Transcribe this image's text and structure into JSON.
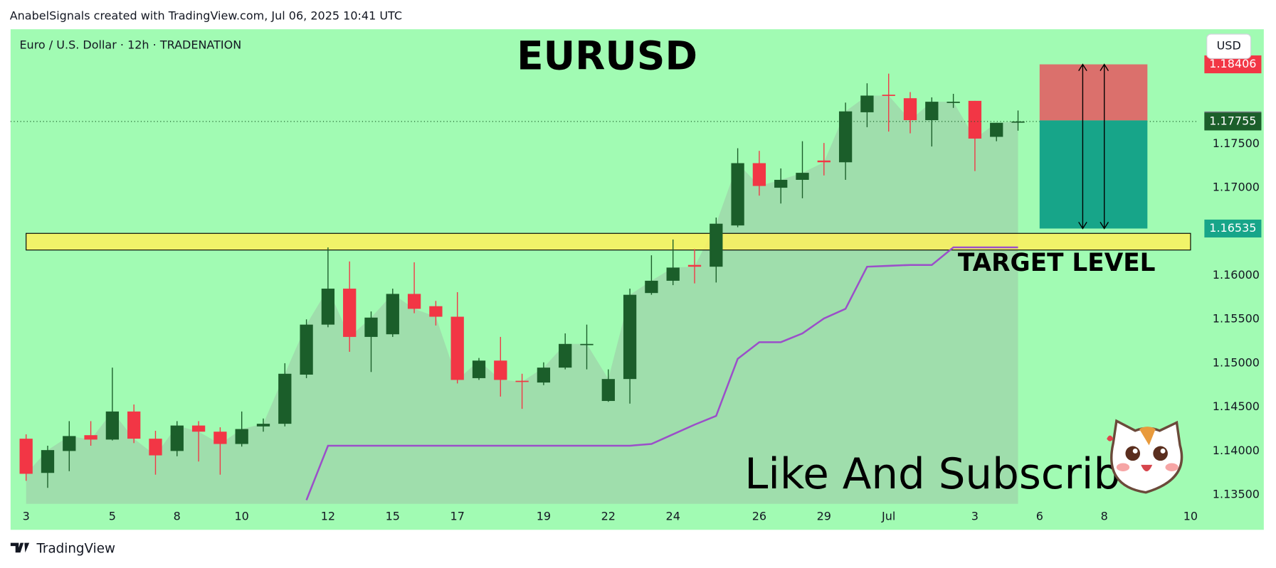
{
  "header": {
    "credit": "AnabelSignals created with TradingView.com, Jul 06, 2025 10:41 UTC"
  },
  "footer": {
    "brand": "TradingView"
  },
  "currency_button": "USD",
  "chart_data": {
    "type": "candlestick",
    "symbol": "Euro / U.S. Dollar · 12h · TRADENATION",
    "title": "EURUSD",
    "zone_label": "TARGET LEVEL",
    "annotation": "Like And Subscribe",
    "up_color": "#1b5e2a",
    "down_color": "#f23645",
    "background": "#a1fbb3",
    "area_color": "#9aa9a1",
    "open": [
      1.1414,
      1.1375,
      1.14,
      1.1418,
      1.1413,
      1.1445,
      1.1414,
      1.14,
      1.1429,
      1.1422,
      1.1408,
      1.1428,
      1.1431,
      1.1487,
      1.1544,
      1.1585,
      1.153,
      1.1533,
      1.1579,
      1.1565,
      1.1553,
      1.1483,
      1.1503,
      1.148,
      1.1478,
      1.1495,
      1.1521,
      1.1457,
      1.1482,
      1.158,
      1.1594,
      1.1612,
      1.161,
      1.1657,
      1.1728,
      1.17,
      1.1709,
      1.1731,
      1.1729,
      1.1786,
      1.1806,
      1.1802,
      1.1777,
      1.1797,
      1.1799,
      1.1758,
      1.1775
    ],
    "high": [
      1.1419,
      1.1406,
      1.1434,
      1.1434,
      1.1495,
      1.1453,
      1.1423,
      1.1434,
      1.1434,
      1.1427,
      1.1445,
      1.1437,
      1.15,
      1.155,
      1.1632,
      1.1616,
      1.1559,
      1.1585,
      1.1615,
      1.1571,
      1.1581,
      1.1506,
      1.153,
      1.1488,
      1.1501,
      1.1534,
      1.1544,
      1.1493,
      1.1585,
      1.1623,
      1.1641,
      1.163,
      1.1666,
      1.1745,
      1.1742,
      1.1722,
      1.1753,
      1.1751,
      1.1797,
      1.1819,
      1.183,
      1.1809,
      1.1803,
      1.1807,
      1.1799,
      1.1774,
      1.1788
    ],
    "low": [
      1.1366,
      1.1358,
      1.1377,
      1.1406,
      1.1412,
      1.1409,
      1.1373,
      1.1394,
      1.1388,
      1.1373,
      1.1405,
      1.1422,
      1.1428,
      1.1483,
      1.1541,
      1.1513,
      1.149,
      1.153,
      1.1557,
      1.1543,
      1.1477,
      1.1481,
      1.1462,
      1.1448,
      1.1475,
      1.1493,
      1.1493,
      1.1456,
      1.1454,
      1.1578,
      1.1589,
      1.1591,
      1.1592,
      1.1655,
      1.1691,
      1.1682,
      1.1688,
      1.1714,
      1.1709,
      1.1769,
      1.1764,
      1.1762,
      1.1747,
      1.1791,
      1.1719,
      1.1753,
      1.1765
    ],
    "close": [
      1.1374,
      1.1401,
      1.1417,
      1.1413,
      1.1445,
      1.1414,
      1.1395,
      1.1429,
      1.1422,
      1.1408,
      1.1425,
      1.1431,
      1.1488,
      1.1544,
      1.1585,
      1.153,
      1.1552,
      1.1579,
      1.1562,
      1.1553,
      1.1481,
      1.1503,
      1.1481,
      1.1479,
      1.1495,
      1.1522,
      1.1522,
      1.1482,
      1.1578,
      1.1594,
      1.1609,
      1.161,
      1.1659,
      1.1728,
      1.1702,
      1.1709,
      1.1717,
      1.1729,
      1.1787,
      1.1805,
      1.1805,
      1.1777,
      1.1798,
      1.1798,
      1.1756,
      1.1774,
      1.17755
    ],
    "indicator": {
      "color": "#9b4fc9",
      "values": [
        null,
        null,
        null,
        null,
        null,
        null,
        null,
        null,
        null,
        null,
        null,
        null,
        null,
        1.1344,
        1.1406,
        1.1406,
        1.1406,
        1.1406,
        1.1406,
        1.1406,
        1.1406,
        1.1406,
        1.1406,
        1.1406,
        1.1406,
        1.1406,
        1.1406,
        1.1406,
        1.1406,
        1.1408,
        1.1419,
        1.143,
        1.144,
        1.1505,
        1.1524,
        1.1524,
        1.1534,
        1.1551,
        1.1562,
        1.161,
        1.1611,
        1.1612,
        1.1612,
        1.1632,
        1.1632,
        1.1632,
        1.1632
      ]
    },
    "zone": {
      "low": 1.1629,
      "high": 1.1648,
      "start": 0,
      "end": 54,
      "color": "#fff15c"
    },
    "position": {
      "stop": 1.18406,
      "entry": 1.17767,
      "target": 1.16535,
      "start": 47,
      "end": 52,
      "loss_color": "#e5575f",
      "profit_color": "#17a589"
    },
    "current_price": {
      "value": 1.17755,
      "color": "#1b5e2a"
    },
    "stop_tag_color": "#f23645",
    "entry_tag_color": "#787b86",
    "target_tag_color": "#17a589",
    "xlim": [
      -0.72,
      54.34
    ],
    "xticks": [
      {
        "value": 0,
        "label": "3"
      },
      {
        "value": 4,
        "label": "5"
      },
      {
        "value": 7,
        "label": "8"
      },
      {
        "value": 10,
        "label": "10"
      },
      {
        "value": 14,
        "label": "12"
      },
      {
        "value": 17,
        "label": "15"
      },
      {
        "value": 20,
        "label": "17"
      },
      {
        "value": 24,
        "label": "19"
      },
      {
        "value": 27,
        "label": "22"
      },
      {
        "value": 30,
        "label": "24"
      },
      {
        "value": 34,
        "label": "26"
      },
      {
        "value": 37,
        "label": "29"
      },
      {
        "value": 40,
        "label": "Jul"
      },
      {
        "value": 44,
        "label": "3"
      },
      {
        "value": 47,
        "label": "6"
      },
      {
        "value": 50,
        "label": "8"
      },
      {
        "value": 54,
        "label": "10"
      }
    ],
    "ylim": [
      1.13398,
      1.18806
    ],
    "yticks": [
      {
        "value": 1.135,
        "label": "1.13500"
      },
      {
        "value": 1.14,
        "label": "1.14000"
      },
      {
        "value": 1.145,
        "label": "1.14500"
      },
      {
        "value": 1.15,
        "label": "1.15000"
      },
      {
        "value": 1.155,
        "label": "1.15500"
      },
      {
        "value": 1.16,
        "label": "1.16000"
      },
      {
        "value": 1.165,
        "label": "1.16500"
      },
      {
        "value": 1.17,
        "label": "1.17000"
      },
      {
        "value": 1.175,
        "label": "1.17500"
      }
    ],
    "grid": false
  }
}
